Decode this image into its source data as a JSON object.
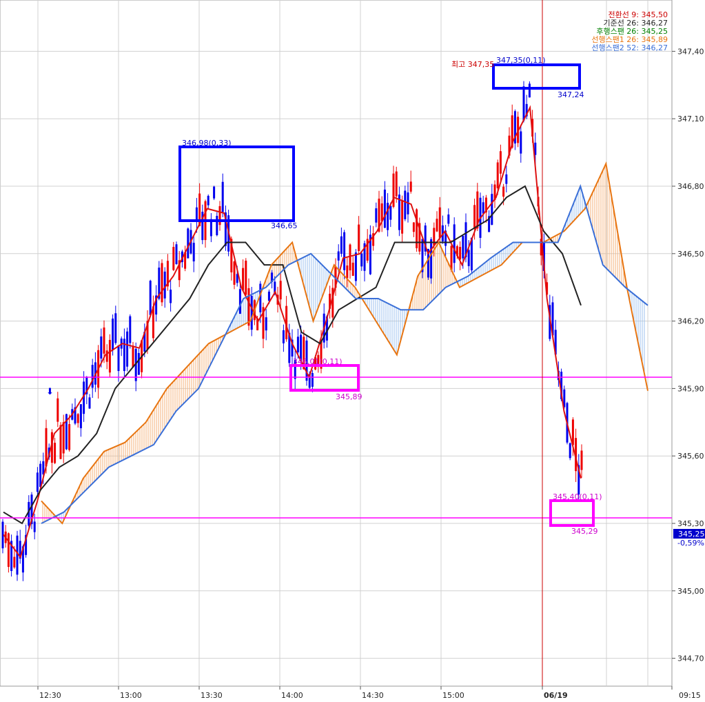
{
  "chart_data": {
    "type": "candlestick",
    "y_range": [
      344.58,
      347.6
    ],
    "grid": true,
    "y_ticks": [
      "347,40",
      "347,10",
      "346,80",
      "346,50",
      "346,20",
      "345,90",
      "345,60",
      "345,30",
      "345,00",
      "344,70"
    ],
    "y_tick_values": [
      347.4,
      347.1,
      346.8,
      346.5,
      346.2,
      345.9,
      345.6,
      345.3,
      345.0,
      344.7
    ],
    "x_ticks": [
      "12:30",
      "13:00",
      "13:30",
      "14:00",
      "14:30",
      "15:00",
      "06/19",
      "09:15"
    ],
    "legend": [
      {
        "text": "전환선 9: 345,50",
        "color": "#cc0000"
      },
      {
        "text": "기준선 26: 346,27",
        "color": "#222222"
      },
      {
        "text": "후행스팬 26: 345,25",
        "color": "#008000"
      },
      {
        "text": "선행스팬1 26: 345,89",
        "color": "#e87511"
      },
      {
        "text": "선행스팬2 52: 346,27",
        "color": "#3a6fd8"
      }
    ],
    "current_price": "345,25",
    "current_change": "-0,59%",
    "horizontal_lines": [
      345.95,
      345.33
    ],
    "day_separator_label": "06/19",
    "annotations": {
      "high_label": "최고 347,35",
      "high_value": "347,35(0,11)",
      "high_sub": "347,24",
      "peak1_value": "346,98(0,33)",
      "peak1_sub": "346,65",
      "low1_value": "346,01(0,11)",
      "low1_sub": "345,89",
      "low2_value": "345,40(0,11)",
      "low2_sub": "345,29"
    },
    "series": [
      {
        "name": "전환선 9",
        "color": "#dd1111",
        "values": [
          345.25,
          345.15,
          345.4,
          345.7,
          345.78,
          345.9,
          346.05,
          346.1,
          346.08,
          346.3,
          346.4,
          346.55,
          346.7,
          346.68,
          346.35,
          346.2,
          346.33,
          346.1,
          345.95,
          346.2,
          346.48,
          346.5,
          346.6,
          346.75,
          346.72,
          346.5,
          346.6,
          346.45,
          346.65,
          346.75,
          347.0,
          347.15,
          346.3,
          345.8,
          345.5
        ]
      },
      {
        "name": "기준선 26",
        "color": "#222222",
        "values": [
          345.35,
          345.3,
          345.45,
          345.55,
          345.6,
          345.7,
          345.9,
          346.0,
          346.1,
          346.2,
          346.3,
          346.45,
          346.55,
          346.55,
          346.45,
          346.45,
          346.15,
          346.1,
          346.25,
          346.3,
          346.35,
          346.55,
          346.55,
          346.55,
          346.55,
          346.6,
          346.65,
          346.75,
          346.8,
          346.6,
          346.5,
          346.27
        ]
      },
      {
        "name": "선행스팬1 26",
        "color": "#e87511",
        "values": [
          345.4,
          345.3,
          345.5,
          345.62,
          345.66,
          345.75,
          345.9,
          346.0,
          346.1,
          346.15,
          346.2,
          346.45,
          346.55,
          346.2,
          346.45,
          346.35,
          346.2,
          346.05,
          346.4,
          346.55,
          346.35,
          346.4,
          346.45,
          346.55,
          346.55,
          346.6,
          346.7,
          346.9,
          346.35,
          345.89
        ]
      },
      {
        "name": "선행스팬2 52",
        "color": "#3a6fd8",
        "values": [
          345.3,
          345.35,
          345.45,
          345.55,
          345.6,
          345.65,
          345.8,
          345.9,
          346.1,
          346.3,
          346.35,
          346.45,
          346.5,
          346.4,
          346.3,
          346.3,
          346.25,
          346.25,
          346.35,
          346.4,
          346.48,
          346.55,
          346.55,
          346.55,
          346.8,
          346.45,
          346.35,
          346.27
        ]
      }
    ]
  }
}
